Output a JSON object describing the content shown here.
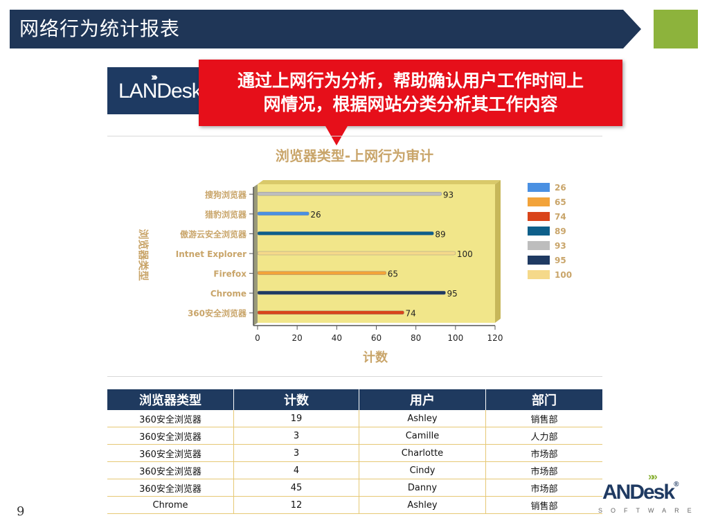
{
  "header": {
    "title": "网络行为统计报表"
  },
  "banner": {
    "text": "LANDesk"
  },
  "callout": {
    "line1": "通过上网行为分析，帮助确认用户工作时间上",
    "line2": "网情况，根据网站分类分析其工作内容"
  },
  "chart_data": {
    "type": "bar",
    "orientation": "horizontal",
    "title": "浏览器类型-上网行为审计",
    "xlabel": "计数",
    "ylabel": "浏览器类型",
    "xlim": [
      0,
      120
    ],
    "xticks": [
      "0",
      "20",
      "40",
      "60",
      "80",
      "100",
      "120"
    ],
    "categories": [
      "搜狗浏览器",
      "猎豹浏览器",
      "傲游云安全浏览器",
      "Intnet Explorer",
      "Firefox",
      "Chrome",
      "360安全浏览器"
    ],
    "bars": [
      {
        "category": "搜狗浏览器",
        "value": 93,
        "label": "93",
        "color": "#bdbdbd"
      },
      {
        "category": "猎豹浏览器",
        "value": 26,
        "label": "26",
        "color": "#4a90e2"
      },
      {
        "category": "傲游云安全浏览器",
        "value": 89,
        "label": "89",
        "color": "#0e5f8a"
      },
      {
        "category": "Intnet Explorer",
        "value": 100,
        "label": "100",
        "color": "#f5d98a"
      },
      {
        "category": "Firefox",
        "value": 65,
        "label": "65",
        "color": "#f2a33a"
      },
      {
        "category": "Chrome",
        "value": 95,
        "label": "95",
        "color": "#1f3a62"
      },
      {
        "category": "360安全浏览器",
        "value": 74,
        "label": "74",
        "color": "#d9441a"
      }
    ],
    "legend": [
      {
        "label": "26",
        "color": "#4a90e2"
      },
      {
        "label": "65",
        "color": "#f2a33a"
      },
      {
        "label": "74",
        "color": "#d9441a"
      },
      {
        "label": "89",
        "color": "#0e5f8a"
      },
      {
        "label": "93",
        "color": "#bdbdbd"
      },
      {
        "label": "95",
        "color": "#1f3a62"
      },
      {
        "label": "100",
        "color": "#f5d98a"
      }
    ],
    "legend_position": "right",
    "plot_background": "#f1e68a",
    "label_color": "#c9a56a"
  },
  "table": {
    "headers": [
      "浏览器类型",
      "计数",
      "用户",
      "部门"
    ],
    "rows": [
      [
        "360安全浏览器",
        "19",
        "Ashley",
        "销售部"
      ],
      [
        "360安全浏览器",
        "3",
        "Camille",
        "人力部"
      ],
      [
        "360安全浏览器",
        "3",
        "Charlotte",
        "市场部"
      ],
      [
        "360安全浏览器",
        "4",
        "Cindy",
        "市场部"
      ],
      [
        "360安全浏览器",
        "45",
        "Danny",
        "市场部"
      ],
      [
        "Chrome",
        "12",
        "Ashley",
        "销售部"
      ]
    ]
  },
  "page_number": "9",
  "logo": {
    "chevrons": "»»",
    "text": "ANDesk",
    "registered": "®",
    "subtitle": "SOFTWARE"
  }
}
